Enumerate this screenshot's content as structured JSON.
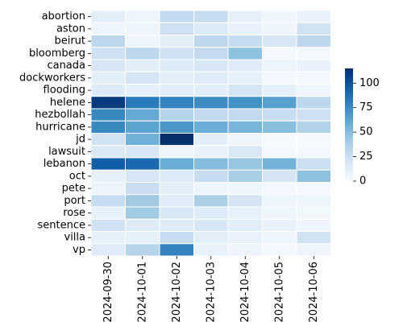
{
  "chart_data": {
    "type": "heatmap",
    "title": "",
    "xlabel": "",
    "ylabel": "",
    "x": [
      "2024-09-30",
      "2024-10-01",
      "2024-10-02",
      "2024-10-03",
      "2024-10-04",
      "2024-10-05",
      "2024-10-06"
    ],
    "y": [
      "abortion",
      "aston",
      "beirut",
      "bloomberg",
      "canada",
      "dockworkers",
      "flooding",
      "helene",
      "hezbollah",
      "hurricane",
      "jd",
      "lawsuit",
      "lebanon",
      "oct",
      "pete",
      "port",
      "rose",
      "sentence",
      "villa",
      "vp"
    ],
    "values": [
      [
        12,
        6,
        30,
        28,
        10,
        5,
        8
      ],
      [
        5,
        5,
        24,
        15,
        8,
        5,
        22
      ],
      [
        32,
        5,
        12,
        32,
        28,
        18,
        32
      ],
      [
        24,
        32,
        24,
        30,
        48,
        3,
        3
      ],
      [
        18,
        12,
        15,
        18,
        14,
        6,
        8
      ],
      [
        12,
        20,
        12,
        14,
        10,
        3,
        3
      ],
      [
        15,
        10,
        12,
        12,
        20,
        10,
        5
      ],
      [
        110,
        82,
        78,
        74,
        72,
        64,
        32
      ],
      [
        76,
        60,
        35,
        30,
        30,
        27,
        24
      ],
      [
        76,
        63,
        69,
        58,
        54,
        49,
        36
      ],
      [
        22,
        56,
        118,
        12,
        5,
        2,
        2
      ],
      [
        16,
        18,
        5,
        8,
        16,
        3,
        3
      ],
      [
        95,
        90,
        58,
        50,
        45,
        55,
        25
      ],
      [
        10,
        18,
        15,
        28,
        40,
        20,
        48
      ],
      [
        6,
        26,
        12,
        5,
        5,
        3,
        3
      ],
      [
        28,
        42,
        14,
        38,
        20,
        6,
        5
      ],
      [
        10,
        42,
        18,
        15,
        10,
        5,
        4
      ],
      [
        22,
        14,
        14,
        18,
        12,
        8,
        5
      ],
      [
        10,
        10,
        28,
        12,
        8,
        5,
        22
      ],
      [
        14,
        34,
        78,
        8,
        5,
        3,
        6
      ]
    ],
    "colorbar": {
      "vmin": 0,
      "vmax": 115,
      "ticks": [
        0,
        25,
        50,
        75,
        100
      ],
      "colormap": "Blues"
    },
    "grid": false,
    "legend": "colorbar-right"
  }
}
